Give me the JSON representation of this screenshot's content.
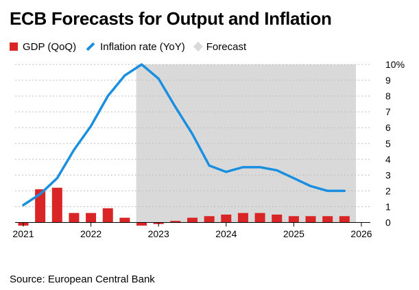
{
  "title": "ECB Forecasts for Output and Inflation",
  "source": "Source: European Central Bank",
  "legend": [
    {
      "label": "GDP (QoQ)",
      "kind": "box",
      "color": "#d92525"
    },
    {
      "label": "Inflation rate (YoY)",
      "kind": "line",
      "color": "#1a8fe0"
    },
    {
      "label": "Forecast",
      "kind": "box",
      "color": "#d9d9d9"
    }
  ],
  "chart_data": {
    "type": "bar",
    "xlim": [
      2021.0,
      2026.0
    ],
    "ylim": [
      -0.3,
      10
    ],
    "y_ticks": [
      0,
      1,
      2,
      3,
      4,
      5,
      6,
      7,
      8,
      9,
      10
    ],
    "y_tick_labels": [
      "0",
      "1",
      "2",
      "3",
      "4",
      "5",
      "6",
      "7",
      "8",
      "9",
      "10%"
    ],
    "x_ticks": [
      2021,
      2022,
      2023,
      2024,
      2025,
      2026
    ],
    "x_tick_labels": [
      "2021",
      "2022",
      "2023",
      "2024",
      "2025",
      "2026"
    ],
    "grid": true,
    "legend_position": "top-left",
    "forecast_region": {
      "start": 2022.67,
      "end": 2025.92,
      "color": "#d9d9d9"
    },
    "series": [
      {
        "name": "GDP (QoQ)",
        "type": "bar",
        "color": "#d92525",
        "x": [
          2021.0,
          2021.25,
          2021.5,
          2021.75,
          2022.0,
          2022.25,
          2022.5,
          2022.75,
          2023.0,
          2023.25,
          2023.5,
          2023.75,
          2024.0,
          2024.25,
          2024.5,
          2024.75,
          2025.0,
          2025.25,
          2025.5,
          2025.75
        ],
        "values": [
          -0.2,
          2.1,
          2.2,
          0.6,
          0.6,
          0.9,
          0.3,
          -0.2,
          -0.1,
          0.1,
          0.3,
          0.4,
          0.5,
          0.6,
          0.6,
          0.5,
          0.4,
          0.4,
          0.4,
          0.4
        ]
      },
      {
        "name": "Inflation rate (YoY)",
        "type": "line",
        "color": "#1a8fe0",
        "x": [
          2021.0,
          2021.25,
          2021.5,
          2021.75,
          2022.0,
          2022.25,
          2022.5,
          2022.75,
          2023.0,
          2023.25,
          2023.5,
          2023.75,
          2024.0,
          2024.25,
          2024.5,
          2024.75,
          2025.0,
          2025.25,
          2025.5,
          2025.75
        ],
        "values": [
          1.1,
          1.8,
          2.8,
          4.6,
          6.1,
          8.0,
          9.3,
          10.0,
          9.1,
          7.3,
          5.6,
          3.6,
          3.2,
          3.5,
          3.5,
          3.3,
          2.8,
          2.3,
          2.0,
          2.0
        ]
      }
    ]
  }
}
